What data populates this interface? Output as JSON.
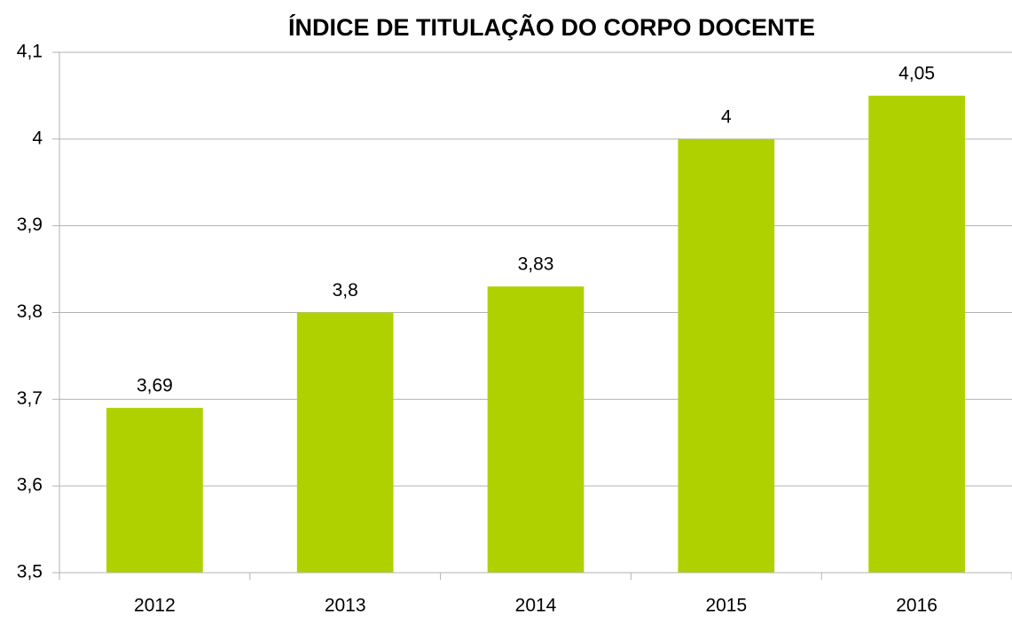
{
  "chart_data": {
    "type": "bar",
    "title": "ÍNDICE DE TITULAÇÃO DO CORPO DOCENTE",
    "categories": [
      "2012",
      "2013",
      "2014",
      "2015",
      "2016"
    ],
    "values": [
      3.69,
      3.8,
      3.83,
      4,
      4.05
    ],
    "value_labels": [
      "3,69",
      "3,8",
      "3,83",
      "4",
      "4,05"
    ],
    "color": "#b0d100",
    "ylim": [
      3.5,
      4.1
    ],
    "yticks": [
      {
        "value": 3.5,
        "label": "3,5"
      },
      {
        "value": 3.6,
        "label": "3,6"
      },
      {
        "value": 3.7,
        "label": "3,7"
      },
      {
        "value": 3.8,
        "label": "3,8"
      },
      {
        "value": 3.9,
        "label": "3,9"
      },
      4,
      {
        "value": 4.1,
        "label": "4,1"
      }
    ],
    "grid": true
  }
}
